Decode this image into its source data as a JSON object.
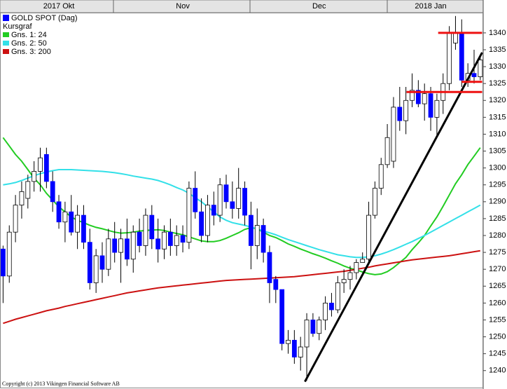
{
  "chart_data": {
    "type": "candlestick",
    "categories": [
      null,
      null,
      null,
      null,
      null,
      null,
      null,
      null,
      null,
      "2017 Okt",
      null,
      null,
      null,
      null,
      null,
      null,
      null,
      null,
      null,
      null,
      null,
      null,
      null,
      null,
      null,
      null,
      null,
      null,
      null,
      "Nov",
      null,
      null,
      null,
      null,
      null,
      null,
      null,
      null,
      null,
      null,
      null,
      null,
      null,
      null,
      null,
      null,
      null,
      null,
      null,
      null,
      null,
      "Dec",
      null,
      null,
      null,
      null,
      null,
      null,
      null,
      null,
      null,
      null,
      null,
      null,
      null,
      null,
      null,
      null,
      null,
      "2018 Jan",
      null,
      null,
      null,
      null,
      null,
      null,
      null,
      null
    ],
    "series": [
      {
        "name": "GOLD SPOT (Dag)",
        "color": "#0000ff",
        "open": [
          1276,
          1268,
          1281,
          1289,
          1291,
          1296,
          1299,
          1304,
          1296,
          1290,
          1284,
          1287,
          1281,
          1286,
          1278,
          1266,
          1274,
          1270,
          1279,
          1275,
          1279,
          1273,
          1281,
          1277,
          1286,
          1279,
          1276,
          1281,
          1277,
          1280,
          1278,
          1294,
          1287,
          1280,
          1289,
          1286,
          1295,
          1290,
          1288,
          1294,
          1286,
          1277,
          1283,
          1275,
          1267,
          1264,
          1248,
          1249,
          1244,
          1247,
          1255,
          1251,
          1255,
          1260,
          1258,
          1266,
          1267,
          1269,
          1272,
          1273,
          1286,
          1294,
          1301,
          1302,
          1318,
          1314,
          1320,
          1323,
          1319,
          1322,
          1315,
          1320,
          1325,
          1337,
          1340,
          1326,
          1328,
          1327
        ],
        "high": [
          1277,
          1283,
          1292,
          1296,
          1298,
          1302,
          1306,
          1306,
          1299,
          1292,
          1290,
          1292,
          1289,
          1289,
          1282,
          1276,
          1278,
          1282,
          1284,
          1282,
          1285,
          1283,
          1285,
          1288,
          1289,
          1285,
          1283,
          1285,
          1283,
          1283,
          1296,
          1299,
          1291,
          1292,
          1293,
          1297,
          1298,
          1296,
          1300,
          1296,
          1290,
          1288,
          1285,
          1277,
          1268,
          1264,
          1252,
          1252,
          1250,
          1257,
          1257,
          1256,
          1262,
          1263,
          1268,
          1270,
          1271,
          1273,
          1275,
          1290,
          1296,
          1303,
          1313,
          1321,
          1324,
          1324,
          1328,
          1326,
          1325,
          1324,
          1322,
          1328,
          1342,
          1345,
          1344,
          1331,
          1335,
          1333
        ],
        "low": [
          1260,
          1266,
          1278,
          1285,
          1288,
          1293,
          1293,
          1294,
          1287,
          1282,
          1278,
          1280,
          1276,
          1276,
          1264,
          1263,
          1266,
          1268,
          1272,
          1266,
          1271,
          1269,
          1275,
          1274,
          1276,
          1272,
          1273,
          1274,
          1274,
          1275,
          1276,
          1285,
          1278,
          1278,
          1283,
          1284,
          1288,
          1285,
          1285,
          1283,
          1270,
          1273,
          1272,
          1260,
          1260,
          1246,
          1245,
          1242,
          1240,
          1237,
          1250,
          1249,
          1252,
          1256,
          1257,
          1263,
          1264,
          1267,
          1272,
          1272,
          1285,
          1292,
          1300,
          1300,
          1311,
          1310,
          1318,
          1318,
          1314,
          1311,
          1309,
          1316,
          1323,
          1335,
          1324,
          1324,
          1325,
          1326
        ],
        "close": [
          1268,
          1281,
          1289,
          1293,
          1296,
          1299,
          1303,
          1296,
          1290,
          1284,
          1287,
          1281,
          1286,
          1278,
          1266,
          1274,
          1270,
          1279,
          1275,
          1279,
          1273,
          1281,
          1277,
          1286,
          1279,
          1276,
          1281,
          1277,
          1280,
          1278,
          1294,
          1287,
          1280,
          1289,
          1286,
          1295,
          1290,
          1288,
          1294,
          1286,
          1277,
          1283,
          1275,
          1266,
          1264,
          1248,
          1249,
          1244,
          1247,
          1255,
          1251,
          1255,
          1260,
          1258,
          1266,
          1267,
          1269,
          1272,
          1273,
          1286,
          1294,
          1301,
          1309,
          1318,
          1314,
          1320,
          1323,
          1319,
          1322,
          1315,
          1320,
          1325,
          1340,
          1340,
          1326,
          1328,
          1327,
          1332
        ]
      }
    ],
    "legend_title": "Kursgraf",
    "overlays": [
      {
        "name": "Gns. 1: 24",
        "color": "#22cc22",
        "values": [
          1309,
          1306.5,
          1304,
          1302,
          1299.5,
          1297,
          1295,
          1292.5,
          1290.5,
          1288.5,
          1287,
          1285.5,
          1284.5,
          1283.8,
          1283,
          1282.4,
          1282,
          1281.5,
          1281,
          1280.7,
          1280.8,
          1281,
          1281.3,
          1281.5,
          1281.6,
          1281.7,
          1281.5,
          1281,
          1280.6,
          1280.2,
          1279.6,
          1279,
          1278.4,
          1278.2,
          1278.2,
          1278.5,
          1279.2,
          1280,
          1280.8,
          1281.8,
          1282.3,
          1282,
          1281,
          1280,
          1279.4,
          1278.5,
          1277.5,
          1276.8,
          1276,
          1275.3,
          1274.6,
          1274,
          1273.3,
          1272.5,
          1271.8,
          1271,
          1270.3,
          1269.8,
          1269.2,
          1268.7,
          1268.4,
          1268.6,
          1269.3,
          1270.5,
          1272,
          1273.5,
          1275.8,
          1277.8,
          1280,
          1282.8,
          1285.5,
          1288.7,
          1292,
          1295.3,
          1298,
          1301,
          1303.5,
          1306
        ]
      },
      {
        "name": "Gns. 2: 50",
        "color": "#33e0e8",
        "values": [
          1295,
          1295.3,
          1295.7,
          1296.3,
          1297,
          1297.7,
          1298.3,
          1298.8,
          1299.2,
          1299.5,
          1299.5,
          1299.5,
          1299.4,
          1299.3,
          1299.2,
          1299.1,
          1299,
          1298.8,
          1298.6,
          1298.3,
          1298,
          1297.6,
          1297.3,
          1297,
          1296.7,
          1296.3,
          1295.7,
          1295,
          1294.2,
          1293.5,
          1292.5,
          1291.2,
          1290,
          1288.5,
          1287,
          1285.5,
          1284.5,
          1283.8,
          1283.4,
          1283,
          1282.5,
          1282,
          1281.3,
          1280.8,
          1280.2,
          1279.5,
          1278.8,
          1278.2,
          1277.6,
          1277,
          1276.4,
          1275.8,
          1275.3,
          1274.8,
          1274.3,
          1274,
          1273.7,
          1273.5,
          1273.5,
          1273.7,
          1274,
          1274.5,
          1275.1,
          1275.8,
          1276.6,
          1277.4,
          1278.2,
          1279.1,
          1280,
          1281,
          1282,
          1283,
          1284,
          1285,
          1286,
          1287,
          1288,
          1289
        ]
      },
      {
        "name": "Gns. 3: 200",
        "color": "#cc1111",
        "values": [
          1254,
          1254.6,
          1255.2,
          1255.7,
          1256.2,
          1256.7,
          1257.2,
          1257.7,
          1258.1,
          1258.5,
          1259,
          1259.4,
          1259.8,
          1260.2,
          1260.6,
          1261,
          1261.4,
          1261.8,
          1262.2,
          1262.6,
          1263,
          1263.3,
          1263.6,
          1263.9,
          1264.2,
          1264.5,
          1264.7,
          1264.9,
          1265.1,
          1265.3,
          1265.5,
          1265.7,
          1265.9,
          1266.1,
          1266.3,
          1266.5,
          1266.7,
          1266.8,
          1266.9,
          1267,
          1267.1,
          1267.2,
          1267.3,
          1267.4,
          1267.5,
          1267.6,
          1267.7,
          1267.8,
          1268,
          1268.2,
          1268.4,
          1268.6,
          1268.8,
          1269,
          1269.2,
          1269.4,
          1269.7,
          1270,
          1270.3,
          1270.6,
          1271,
          1271.3,
          1271.6,
          1271.9,
          1272.2,
          1272.5,
          1272.8,
          1273,
          1273.2,
          1273.4,
          1273.6,
          1273.8,
          1274,
          1274.3,
          1274.6,
          1274.9,
          1275.2,
          1275.5
        ]
      }
    ],
    "lines": [
      {
        "color": "#000000",
        "x": [
          48.7,
          77.3
        ],
        "y": [
          1236.7,
          1334.2
        ]
      },
      {
        "color": "#ee1111",
        "x": [
          70.2,
          77.3
        ],
        "y": [
          1340,
          1340
        ]
      },
      {
        "color": "#ee1111",
        "x": [
          65.1,
          77.3
        ],
        "y": [
          1322.5,
          1322.5
        ]
      },
      {
        "color": "#ee1111",
        "x": [
          74,
          77.3
        ],
        "y": [
          1325.5,
          1325.5
        ]
      }
    ],
    "ylim": [
      1236,
      1346
    ],
    "yticks": [
      1240,
      1245,
      1250,
      1255,
      1260,
      1265,
      1270,
      1275,
      1280,
      1285,
      1290,
      1295,
      1300,
      1305,
      1310,
      1315,
      1320,
      1325,
      1330,
      1335,
      1340
    ],
    "copyright": "Copyright (c) 2013 Vikingen Financial Software AB"
  }
}
